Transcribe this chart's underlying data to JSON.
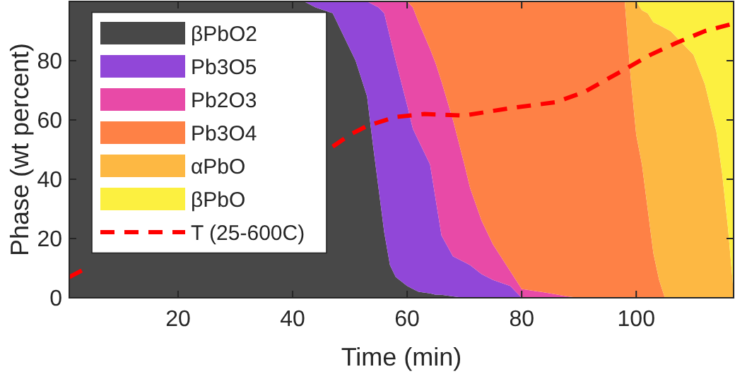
{
  "chart_data": {
    "type": "area",
    "stacked": true,
    "xlabel": "Time (min)",
    "ylabel": "Phase (wt percent)",
    "xlim": [
      1,
      117
    ],
    "ylim": [
      0,
      100
    ],
    "xticks": [
      20,
      40,
      60,
      80,
      100
    ],
    "yticks": [
      0,
      20,
      40,
      60,
      80
    ],
    "grid": false,
    "legend": "left",
    "x": [
      1,
      42,
      44,
      47,
      49,
      51,
      53,
      54,
      55,
      56,
      57,
      58,
      60,
      61,
      62,
      64,
      65,
      66,
      68,
      70,
      71,
      73,
      75,
      78,
      80,
      85,
      88,
      90,
      98,
      99,
      100,
      101,
      102,
      103,
      104,
      105,
      106,
      108,
      110,
      112,
      114,
      115,
      116,
      117
    ],
    "series": [
      {
        "name": "βPbO2",
        "color": "#484848",
        "values": [
          100,
          100,
          98,
          96,
          88,
          80,
          68,
          52,
          37,
          22,
          11,
          7,
          4,
          3,
          2,
          1.5,
          1,
          1,
          0.5,
          0,
          null,
          null,
          null,
          null,
          null,
          null,
          null,
          null,
          null,
          null,
          null,
          null,
          null,
          null,
          null,
          null,
          null,
          null,
          null,
          null,
          null,
          null,
          null,
          null
        ]
      },
      {
        "name": "Pb3O5",
        "color": "#9147d8",
        "values": [
          null,
          0,
          2,
          4,
          12,
          20,
          32,
          47,
          61,
          74,
          77,
          73,
          61,
          54,
          51,
          43.5,
          32,
          20,
          13.5,
          12,
          11,
          8,
          6,
          4,
          0,
          null,
          null,
          null,
          null,
          null,
          null,
          null,
          null,
          null,
          null,
          null,
          null,
          null,
          null,
          null,
          null,
          null,
          null,
          null
        ]
      },
      {
        "name": "Pb2O3",
        "color": "#e84aa7",
        "values": [
          null,
          null,
          null,
          null,
          null,
          null,
          0,
          1,
          2,
          4,
          12,
          20,
          35,
          41,
          40,
          39,
          46,
          52,
          46,
          33,
          26,
          18,
          12,
          5,
          3,
          1.5,
          0.5,
          0,
          null,
          null,
          null,
          null,
          null,
          null,
          null,
          null,
          null,
          null,
          null,
          null,
          null,
          null,
          null,
          null
        ]
      },
      {
        "name": "Pb3O4",
        "color": "#fe8146",
        "values": [
          null,
          null,
          null,
          null,
          null,
          null,
          null,
          null,
          null,
          null,
          null,
          null,
          0,
          2,
          7,
          16,
          21,
          27,
          40,
          55,
          63,
          74,
          82,
          91,
          97,
          98.5,
          99.5,
          100,
          100,
          75,
          55,
          45,
          30,
          15,
          6,
          0,
          null,
          null,
          null,
          null,
          null,
          null,
          null,
          null
        ]
      },
      {
        "name": "αPbO",
        "color": "#fdb843",
        "values": [
          null,
          null,
          null,
          null,
          null,
          null,
          null,
          null,
          null,
          null,
          null,
          null,
          null,
          null,
          null,
          null,
          null,
          null,
          null,
          null,
          null,
          null,
          null,
          null,
          null,
          null,
          null,
          null,
          0,
          25,
          45,
          52,
          66,
          78,
          86,
          91,
          90,
          86,
          82,
          72,
          56,
          42,
          24,
          2
        ]
      },
      {
        "name": "βPbO",
        "color": "#fcf040",
        "values": [
          null,
          null,
          null,
          null,
          null,
          null,
          null,
          null,
          null,
          null,
          null,
          null,
          null,
          null,
          null,
          null,
          null,
          null,
          null,
          null,
          null,
          null,
          null,
          null,
          null,
          null,
          null,
          null,
          null,
          null,
          0,
          3,
          4,
          7,
          8,
          9,
          10,
          14,
          18,
          28,
          44,
          58,
          76,
          98
        ]
      },
      {
        "name": "T (25-600C)",
        "type": "line",
        "color": "#ff0000",
        "line_style": "dashed",
        "x": [
          1,
          4.5,
          20,
          47,
          50,
          53,
          58,
          63,
          70,
          78,
          86,
          91,
          97,
          102.5,
          107,
          112,
          117
        ],
        "values": [
          7,
          10.5,
          null,
          51,
          55,
          58,
          61,
          62,
          61.5,
          64,
          66,
          69.5,
          76,
          82,
          86,
          90,
          92.5
        ]
      }
    ]
  }
}
